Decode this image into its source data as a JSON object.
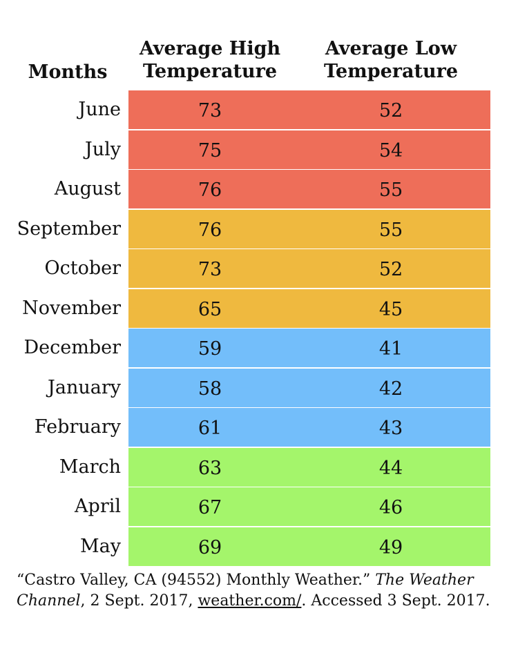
{
  "headers": {
    "months": "Months",
    "high_line1": "Average High",
    "high_line2": "Temperature",
    "low_line1": "Average Low",
    "low_line2": "Temperature"
  },
  "colors": {
    "summer": "#ee6e59",
    "fall": "#efb93f",
    "winter": "#73befa",
    "spring": "#a4f56b"
  },
  "rows": [
    {
      "month": "June",
      "high": "73",
      "low": "52",
      "season": "summer"
    },
    {
      "month": "July",
      "high": "75",
      "low": "54",
      "season": "summer"
    },
    {
      "month": "August",
      "high": "76",
      "low": "55",
      "season": "summer"
    },
    {
      "month": "September",
      "high": "76",
      "low": "55",
      "season": "fall"
    },
    {
      "month": "October",
      "high": "73",
      "low": "52",
      "season": "fall"
    },
    {
      "month": "November",
      "high": "65",
      "low": "45",
      "season": "fall"
    },
    {
      "month": "December",
      "high": "59",
      "low": "41",
      "season": "winter"
    },
    {
      "month": "January",
      "high": "58",
      "low": "42",
      "season": "winter"
    },
    {
      "month": "February",
      "high": "61",
      "low": "43",
      "season": "winter"
    },
    {
      "month": "March",
      "high": "63",
      "low": "44",
      "season": "spring"
    },
    {
      "month": "April",
      "high": "67",
      "low": "46",
      "season": "spring"
    },
    {
      "month": "May",
      "high": "69",
      "low": "49",
      "season": "spring"
    }
  ],
  "citation": {
    "part1": "“Castro Valley, CA (94552) Monthly  Weather.” ",
    "source": "The Weather Channel",
    "part2": ", 2 Sept. 2017, ",
    "link": "weather.com/",
    "part3": ". Accessed 3 Sept. 2017."
  }
}
